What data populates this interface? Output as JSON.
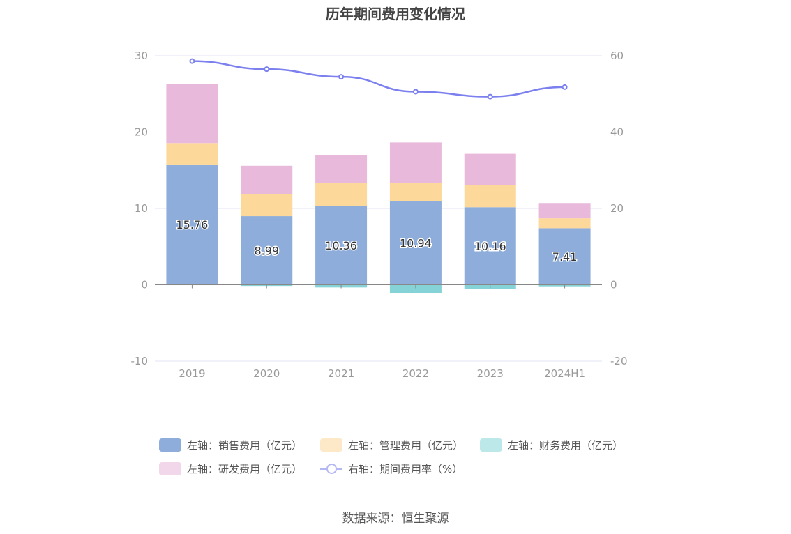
{
  "chart_data": {
    "type": "bar",
    "title": "历年期间费用变化情况",
    "categories": [
      "2019",
      "2020",
      "2021",
      "2022",
      "2023",
      "2024H1"
    ],
    "left_axis": {
      "ylim": [
        -10,
        30
      ],
      "ticks": [
        -10,
        0,
        10,
        20,
        30
      ]
    },
    "right_axis": {
      "ylim": [
        -20,
        60
      ],
      "ticks": [
        -20,
        0,
        20,
        40,
        60
      ]
    },
    "series": [
      {
        "name": "左轴：销售费用（亿元）",
        "axis": "left",
        "kind": "bar",
        "values": [
          15.76,
          8.99,
          10.36,
          10.94,
          10.16,
          7.41
        ],
        "color": "#8eaddb",
        "show_labels": true
      },
      {
        "name": "左轴：管理费用（亿元）",
        "axis": "left",
        "kind": "bar",
        "values": [
          2.8,
          2.9,
          3.0,
          2.4,
          2.9,
          1.3
        ],
        "color": "#fcd89a",
        "legend_color": "#fde8c7"
      },
      {
        "name": "左轴：财务费用（亿元）",
        "axis": "left",
        "kind": "bar",
        "values": [
          -0.05,
          -0.15,
          -0.35,
          -1.05,
          -0.55,
          -0.2
        ],
        "color": "#85d3d6",
        "legend_color": "#bde8ea"
      },
      {
        "name": "左轴：研发费用（亿元）",
        "axis": "left",
        "kind": "bar",
        "values": [
          7.7,
          3.7,
          3.6,
          5.3,
          4.1,
          2.0
        ],
        "color": "#e8b9da",
        "legend_color": "#f2d7ea"
      },
      {
        "name": "右轴：期间费用率（%）",
        "axis": "right",
        "kind": "line",
        "values": [
          58.6,
          56.5,
          54.5,
          50.6,
          49.3,
          51.8
        ],
        "color": "#7b80ee"
      }
    ],
    "grid": true,
    "legend_position": "bottom"
  },
  "source": "数据来源：恒生聚源"
}
